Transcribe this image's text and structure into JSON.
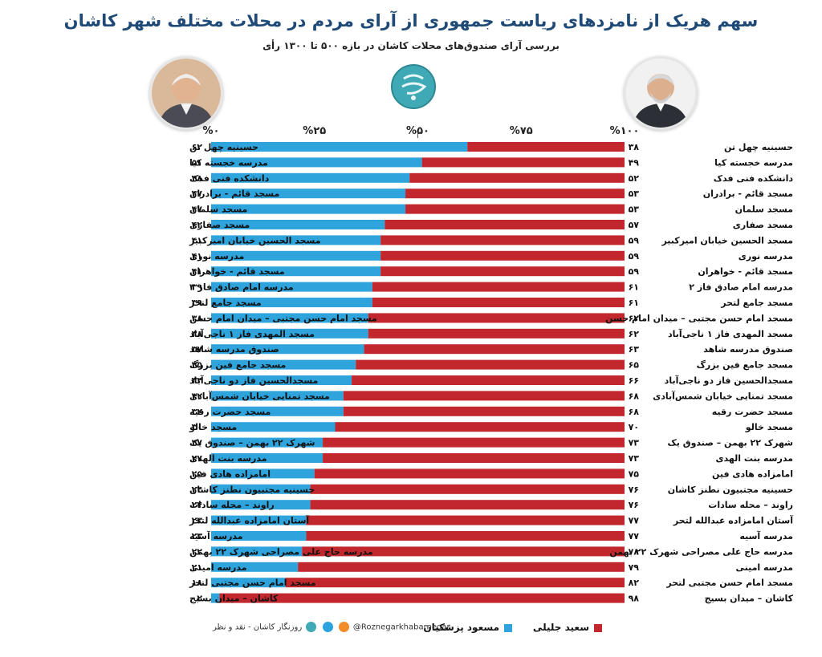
{
  "title": "سهم هریک از نامزدهای ریاست جمهوری از آرای مردم در محلات مختلف شهر کاشان",
  "subtitle": "بررسی آرای صندوق‌های محلات کاشان در بازه ۵۰۰ تا ۱۳۰۰ رأی",
  "colors": {
    "pezeshkian": "#2ea3dc",
    "jalili": "#c1272d",
    "title": "#1f4a78"
  },
  "legend": {
    "jalili": "سعید جلیلی",
    "pezeshkian": "مسعود پزشکیان"
  },
  "footer": {
    "handle": "@Roznegarkhabarnegar",
    "brand": "روزنگار کاشان - نقد و نظر"
  },
  "chart_data": {
    "type": "bar",
    "stacked": true,
    "orientation": "horizontal",
    "xlim": [
      0,
      100
    ],
    "ticks": [
      0,
      25,
      50,
      75,
      100
    ],
    "tick_labels": [
      "%۰",
      "%۲۵",
      "%۵۰",
      "%۷۵",
      "%۱۰۰"
    ],
    "categories": [
      "حسینیه چهل تن",
      "مدرسه خجسته کیا",
      "دانشکده فنی فدک",
      "مسجد قائم - برادران",
      "مسجد سلمان",
      "مسجد صفاری",
      "مسجد الحسین خیابان امیرکبیر",
      "مدرسه نوری",
      "مسجد قائم - خواهران",
      "مدرسه امام صادق فاز ۲",
      "مسجد جامع لتحر",
      "مسجد امام حسن مجتبی – میدان امام حسن",
      "مسجد المهدی فاز ۱ ناجی‌آباد",
      "صندوق مدرسه شاهد",
      "مسجد جامع فین بزرگ",
      "مسجدالحسین فاز دو ناجی‌آباد",
      "مسجد تمنایی خیابان شمس‌آبادی",
      "مسجد حضرت رقیه",
      "مسجد خالو",
      "شهرک ۲۲ بهمن – صندوق یک",
      "مدرسه بنت الهدی",
      "امامزاده هادی فین",
      "حسینیه مجتبیون نطنز کاشان",
      "راوند – محله سادات",
      "آستان امامزاده عبدالله لتحر",
      "مدرسه آسیه",
      "مدرسه حاج علی مصراحی شهرک ۲۲ بهمن",
      "مدرسه امینی",
      "مسجد امام حسن مجتبی لتحر",
      "کاشان – میدان بسیج"
    ],
    "series": [
      {
        "name": "مسعود پزشکیان",
        "values": [
          62,
          51,
          48,
          47,
          47,
          42,
          41,
          41,
          41,
          39,
          39,
          38,
          38,
          37,
          35,
          34,
          32,
          32,
          30,
          27,
          27,
          25,
          24,
          24,
          23,
          23,
          22,
          21,
          18,
          2
        ],
        "value_labels": [
          "۶۲",
          "۵۱",
          "۴۸",
          "۴۷",
          "۴۷",
          "۴۲",
          "۴۱",
          "۴۱",
          "۴۱",
          "۳۹",
          "۳۹",
          "۳۸",
          "۳۸",
          "۳۷",
          "۳۵",
          "۳۴",
          "۳۲",
          "۳۲",
          "۳۰",
          "۲۷",
          "۲۷",
          "۲۵",
          "۲۴",
          "۲۴",
          "۲۳",
          "۲۳",
          "۲۲",
          "۲۱",
          "۱۸",
          "۲"
        ]
      },
      {
        "name": "سعید جلیلی",
        "values": [
          38,
          49,
          52,
          53,
          53,
          57,
          59,
          59,
          59,
          61,
          61,
          62,
          62,
          63,
          65,
          66,
          68,
          68,
          70,
          73,
          73,
          75,
          76,
          76,
          77,
          77,
          78,
          79,
          82,
          98
        ],
        "value_labels": [
          "۳۸",
          "۴۹",
          "۵۲",
          "۵۳",
          "۵۳",
          "۵۷",
          "۵۹",
          "۵۹",
          "۵۹",
          "۶۱",
          "۶۱",
          "۶۲",
          "۶۲",
          "۶۳",
          "۶۵",
          "۶۶",
          "۶۸",
          "۶۸",
          "۷۰",
          "۷۳",
          "۷۳",
          "۷۵",
          "۷۶",
          "۷۶",
          "۷۷",
          "۷۷",
          "۷۸",
          "۷۹",
          "۸۲",
          "۹۸"
        ]
      }
    ]
  }
}
